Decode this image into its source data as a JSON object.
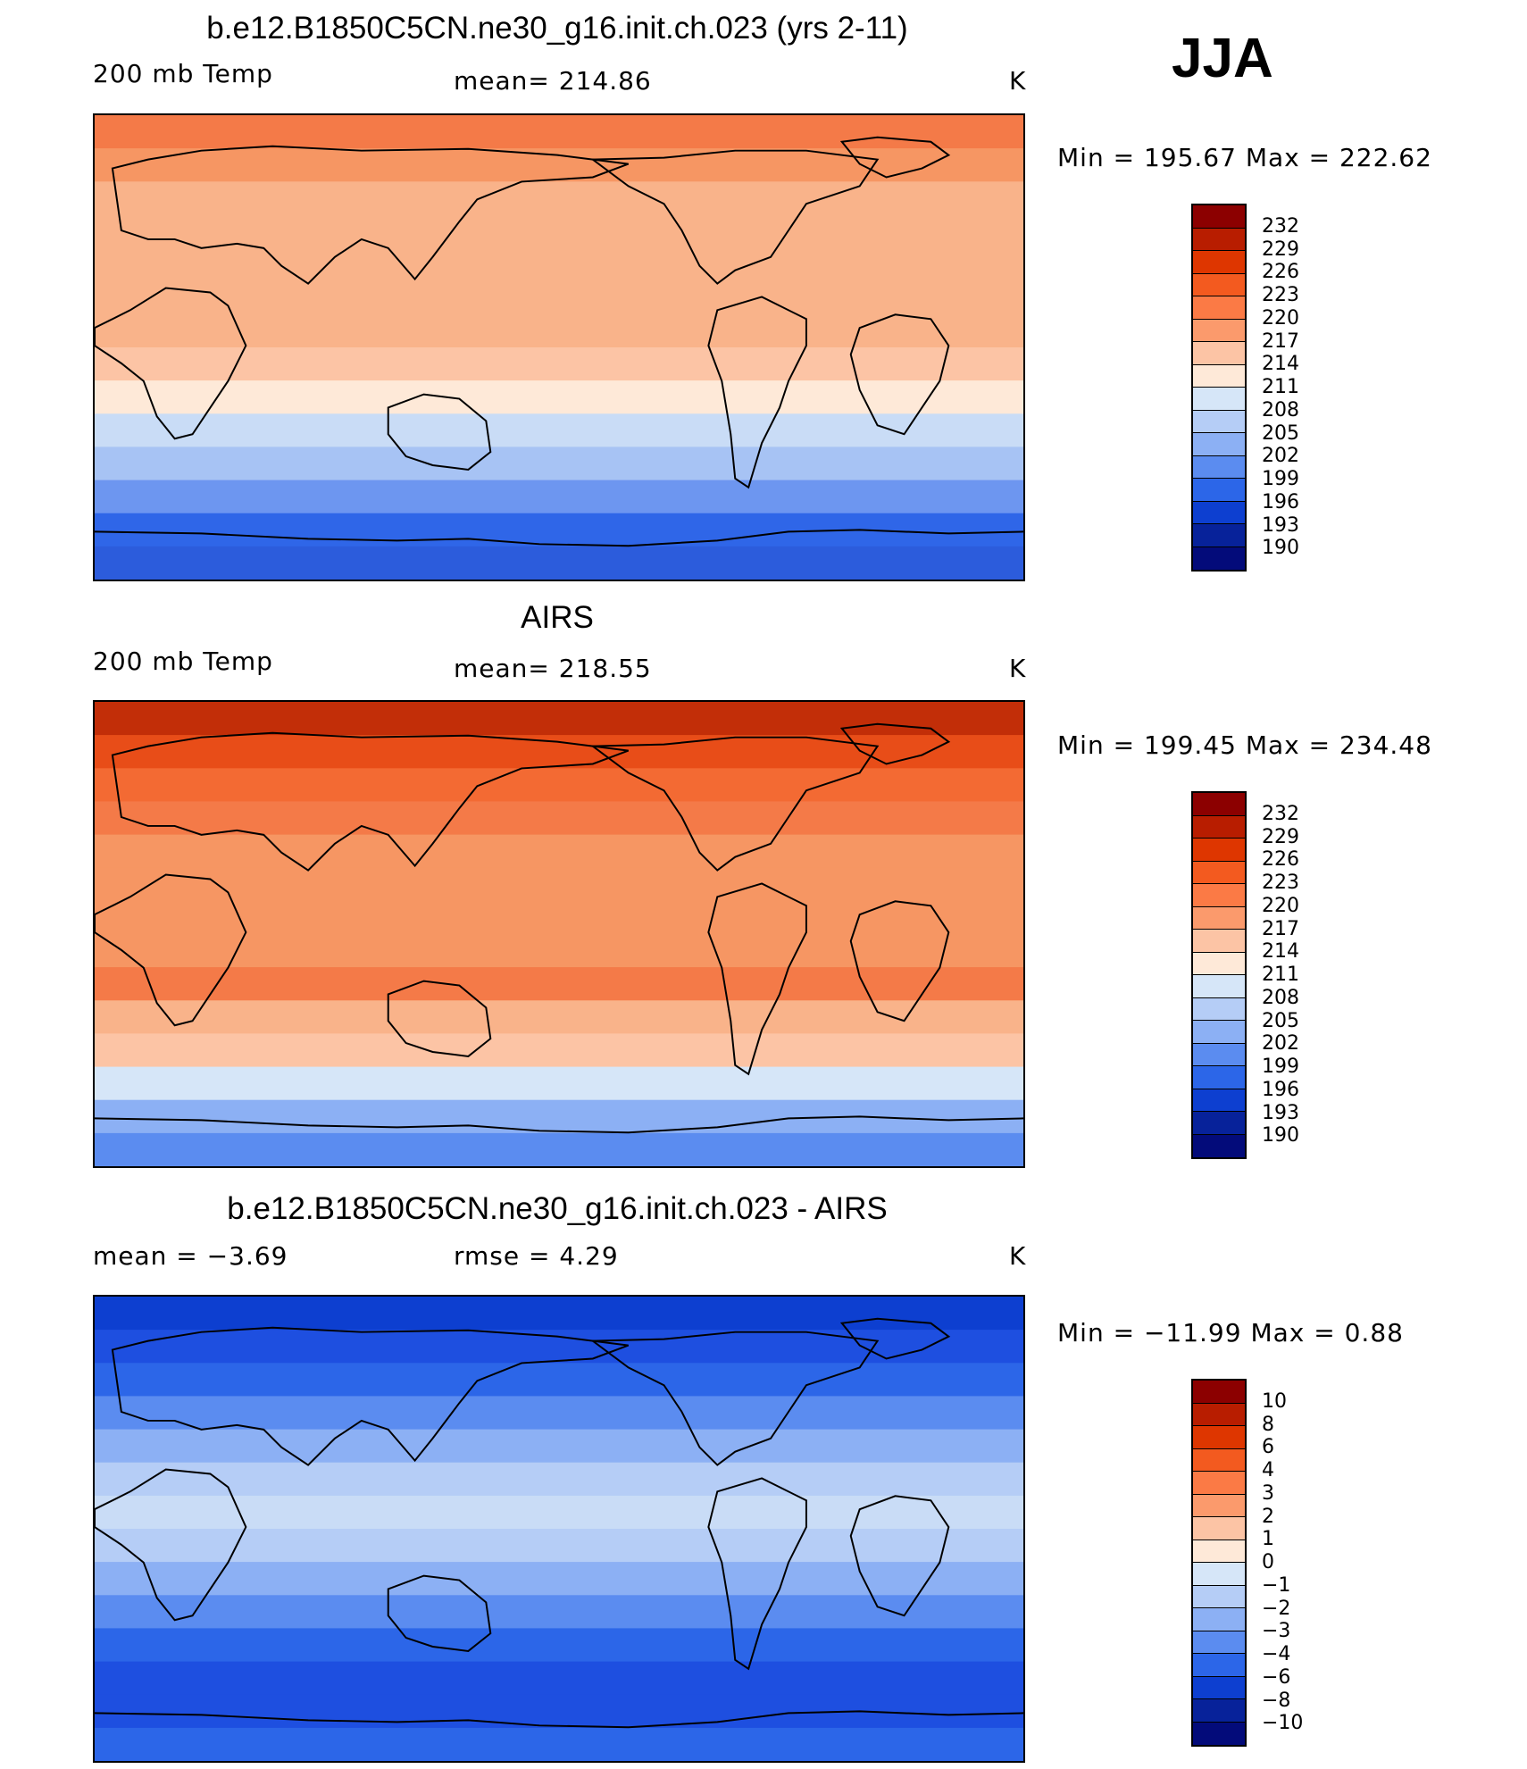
{
  "season": "JJA",
  "panels": [
    {
      "title": "b.e12.B1850C5CN.ne30_g16.init.ch.023 (yrs 2-11)",
      "left_label": "200 mb Temp",
      "center_label": "mean=  214.86",
      "unit": "K",
      "minmax": "Min  =  195.67  Max  =  222.62",
      "colorbar": {
        "labels": [
          "232",
          "229",
          "226",
          "223",
          "220",
          "217",
          "214",
          "211",
          "208",
          "205",
          "202",
          "199",
          "196",
          "193",
          "190"
        ],
        "colors": [
          "#8c0000",
          "#b81d00",
          "#de3600",
          "#f35a1f",
          "#fb7a45",
          "#fb9a6c",
          "#fcc4a5",
          "#fee9d8",
          "#d6e6f8",
          "#b5cdf6",
          "#8cb0f4",
          "#5b8cf0",
          "#2c66e8",
          "#0d3fd0",
          "#07229a",
          "#030b7a"
        ]
      },
      "map": {
        "bands": [
          "#f47a48",
          "#f69663",
          "#f9b38a",
          "#f9b38a",
          "#f9b38a",
          "#f9b38a",
          "#f9b38a",
          "#fcc4a5",
          "#fee9d8",
          "#c9dcf6",
          "#a7c3f4",
          "#6d96f0",
          "#2f66e8",
          "#2c5cdc"
        ]
      }
    },
    {
      "title": "AIRS",
      "left_label": "200 mb Temp",
      "center_label": "mean=  218.55",
      "unit": "K",
      "minmax": "Min  =  199.45  Max  =  234.48",
      "colorbar": {
        "labels": [
          "232",
          "229",
          "226",
          "223",
          "220",
          "217",
          "214",
          "211",
          "208",
          "205",
          "202",
          "199",
          "196",
          "193",
          "190"
        ],
        "colors": [
          "#8c0000",
          "#b81d00",
          "#de3600",
          "#f35a1f",
          "#fb7a45",
          "#fb9a6c",
          "#fcc4a5",
          "#fee9d8",
          "#d6e6f8",
          "#b5cdf6",
          "#8cb0f4",
          "#5b8cf0",
          "#2c66e8",
          "#0d3fd0",
          "#07229a",
          "#030b7a"
        ]
      },
      "map": {
        "bands": [
          "#c22e08",
          "#e84d18",
          "#f36a33",
          "#f47a48",
          "#f69663",
          "#f69663",
          "#f69663",
          "#f69663",
          "#f47a48",
          "#f9b38a",
          "#fcc4a5",
          "#d6e6f8",
          "#8cb0f4",
          "#5b8cf0"
        ]
      }
    },
    {
      "title": "b.e12.B1850C5CN.ne30_g16.init.ch.023 - AIRS",
      "left_label": "mean  =     −3.69",
      "center_label": "rmse  =      4.29",
      "unit": "K",
      "minmax": "Min  =  −11.99  Max  =      0.88",
      "colorbar": {
        "labels": [
          "10",
          "8",
          "6",
          "4",
          "3",
          "2",
          "1",
          "0",
          "−1",
          "−2",
          "−3",
          "−4",
          "−6",
          "−8",
          "−10"
        ],
        "colors": [
          "#8c0000",
          "#b81d00",
          "#de3600",
          "#f35a1f",
          "#fb7a45",
          "#fb9a6c",
          "#fcc4a5",
          "#fee9d8",
          "#d6e6f8",
          "#b5cdf6",
          "#8cb0f4",
          "#5b8cf0",
          "#2c66e8",
          "#0d3fd0",
          "#07229a",
          "#030b7a"
        ]
      },
      "map": {
        "bands": [
          "#0d3fd0",
          "#1e4fe0",
          "#2c66e8",
          "#5b8cf0",
          "#8cb0f4",
          "#b5cdf6",
          "#c9dcf6",
          "#b5cdf6",
          "#8cb0f4",
          "#5b8cf0",
          "#2c66e8",
          "#1e4fe0",
          "#1e4fe0",
          "#2c66e8"
        ]
      }
    }
  ]
}
